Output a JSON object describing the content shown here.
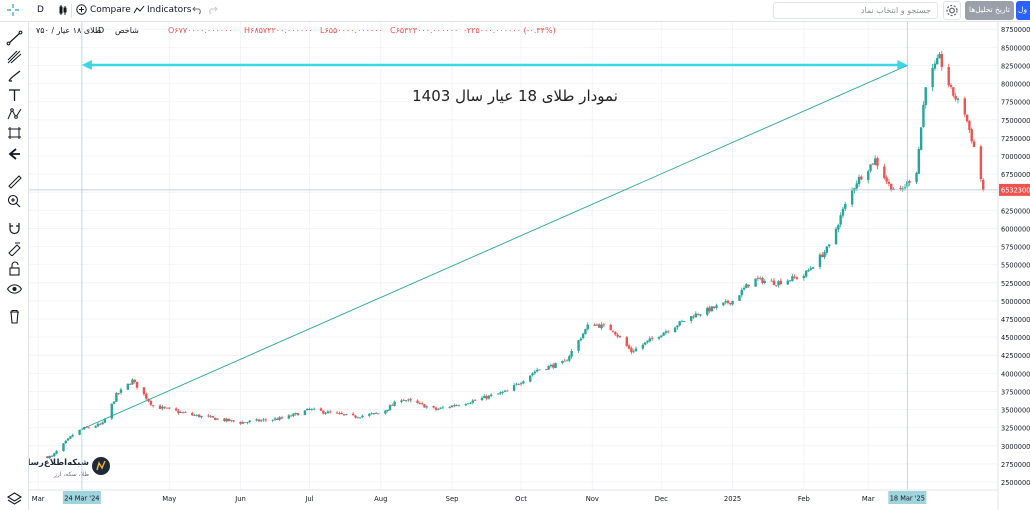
{
  "toolbar": {
    "symbol_short": "D",
    "interval": "D",
    "compare_label": "Compare",
    "indicators_label": "Indicators",
    "search_placeholder": "جستجو و انتخاب نماد",
    "history_button": "تاریخ تحلیل‌ها",
    "login_button": "ول"
  },
  "legend": {
    "symbol": "طلای ۱۸ عیار / ۷۵۰",
    "interval": "D",
    "label": "شاخص",
    "open": "O۶۷۷۰۰۰۰.۰۰۰۰۰۰",
    "high": "H۶۸۵۷۲۲۰۰.۰۰۰۰۰۰",
    "low": "L۶۵۵۰۰۰۰.۰۰۰۰۰۰",
    "close": "C۶۵۳۲۳۰۰۰.۰۰۰۰۰۰",
    "change": "-۲۲۵۰۰۰.۰۰۰۰۰۰ (-۰.۳۴%)"
  },
  "colors": {
    "up": "#26a69a",
    "down": "#ef5350",
    "trendline": "#26a69a",
    "arrow": "#3dd6e6",
    "price_tag": "#ef5350",
    "crosshair_label": "#9fd4dc"
  },
  "icons": [
    "crosshair-icon",
    "trendline-icon",
    "pitchfork-icon",
    "brush-icon",
    "text-icon",
    "pattern-icon",
    "projection-icon",
    "back-arrow-icon",
    "ruler-icon",
    "zoom-in-icon",
    "magnet-icon",
    "lock-drawing-icon",
    "unlock-icon",
    "eye-icon",
    "trash-icon",
    "gear-icon",
    "undo-icon",
    "redo-icon",
    "candles-icon",
    "compare-icon",
    "indicators-icon",
    "layers-icon"
  ],
  "annotation": {
    "text": "نمودار طلای 18 عیار سال 1403"
  },
  "watermark": {
    "name": "شبکه‌اطلاع‌رسانی",
    "sub": "طلا، سکه، ارز"
  },
  "crosshair": {
    "start_date_label": "24 Mar '24",
    "end_date_label": "18 Mar '25"
  },
  "last_price_label": "65323000",
  "chart_data": {
    "type": "candlestick",
    "title": "نمودار طلای 18 عیار سال 1403",
    "ylim": [
      24000000,
      89000000
    ],
    "y_ticks": [
      "25000000",
      "27500000",
      "30000000",
      "32500000",
      "35000000",
      "37500000",
      "40000000",
      "42500000",
      "45000000",
      "47500000",
      "50000000",
      "52500000",
      "55000000",
      "57500000",
      "60000000",
      "62500000",
      "65000000",
      "67500000",
      "70000000",
      "72500000",
      "75000000",
      "77500000",
      "80000000",
      "82500000",
      "85000000",
      "87500000"
    ],
    "x_ticks": [
      "Mar",
      "May",
      "Jun",
      "Jul",
      "Aug",
      "Sep",
      "Oct",
      "Nov",
      "Dec",
      "2025",
      "Feb",
      "Mar"
    ],
    "close_trajectory": [
      {
        "date": "2024-03-11",
        "close": 28500000
      },
      {
        "date": "2024-03-20",
        "close": 31500000
      },
      {
        "date": "2024-03-24",
        "close": 32300000
      },
      {
        "date": "2024-04-02",
        "close": 33000000
      },
      {
        "date": "2024-04-08",
        "close": 37000000
      },
      {
        "date": "2024-04-15",
        "close": 39000000
      },
      {
        "date": "2024-04-24",
        "close": 35500000
      },
      {
        "date": "2024-05-10",
        "close": 34300000
      },
      {
        "date": "2024-06-01",
        "close": 33200000
      },
      {
        "date": "2024-06-20",
        "close": 33800000
      },
      {
        "date": "2024-07-01",
        "close": 35000000
      },
      {
        "date": "2024-07-20",
        "close": 34000000
      },
      {
        "date": "2024-08-01",
        "close": 34500000
      },
      {
        "date": "2024-08-10",
        "close": 36500000
      },
      {
        "date": "2024-08-25",
        "close": 35000000
      },
      {
        "date": "2024-09-10",
        "close": 36200000
      },
      {
        "date": "2024-09-25",
        "close": 37500000
      },
      {
        "date": "2024-10-08",
        "close": 40500000
      },
      {
        "date": "2024-10-20",
        "close": 41500000
      },
      {
        "date": "2024-10-31",
        "close": 47000000
      },
      {
        "date": "2024-11-10",
        "close": 46000000
      },
      {
        "date": "2024-11-18",
        "close": 43000000
      },
      {
        "date": "2024-12-01",
        "close": 45500000
      },
      {
        "date": "2024-12-15",
        "close": 48000000
      },
      {
        "date": "2025-01-01",
        "close": 50000000
      },
      {
        "date": "2025-01-10",
        "close": 53000000
      },
      {
        "date": "2025-01-20",
        "close": 52500000
      },
      {
        "date": "2025-02-01",
        "close": 53500000
      },
      {
        "date": "2025-02-12",
        "close": 57500000
      },
      {
        "date": "2025-02-18",
        "close": 62500000
      },
      {
        "date": "2025-02-24",
        "close": 66500000
      },
      {
        "date": "2025-03-04",
        "close": 69500000
      },
      {
        "date": "2025-03-10",
        "close": 66000000
      },
      {
        "date": "2025-03-15",
        "close": 65000000
      },
      {
        "date": "2025-03-22",
        "close": 68000000
      },
      {
        "date": "2025-03-26",
        "close": 80000000
      },
      {
        "date": "2025-04-01",
        "close": 83500000
      },
      {
        "date": "2025-04-06",
        "close": 79000000
      },
      {
        "date": "2025-04-12",
        "close": 76000000
      },
      {
        "date": "2025-04-17",
        "close": 70000000
      },
      {
        "date": "2025-04-20",
        "close": 65323000
      }
    ]
  }
}
